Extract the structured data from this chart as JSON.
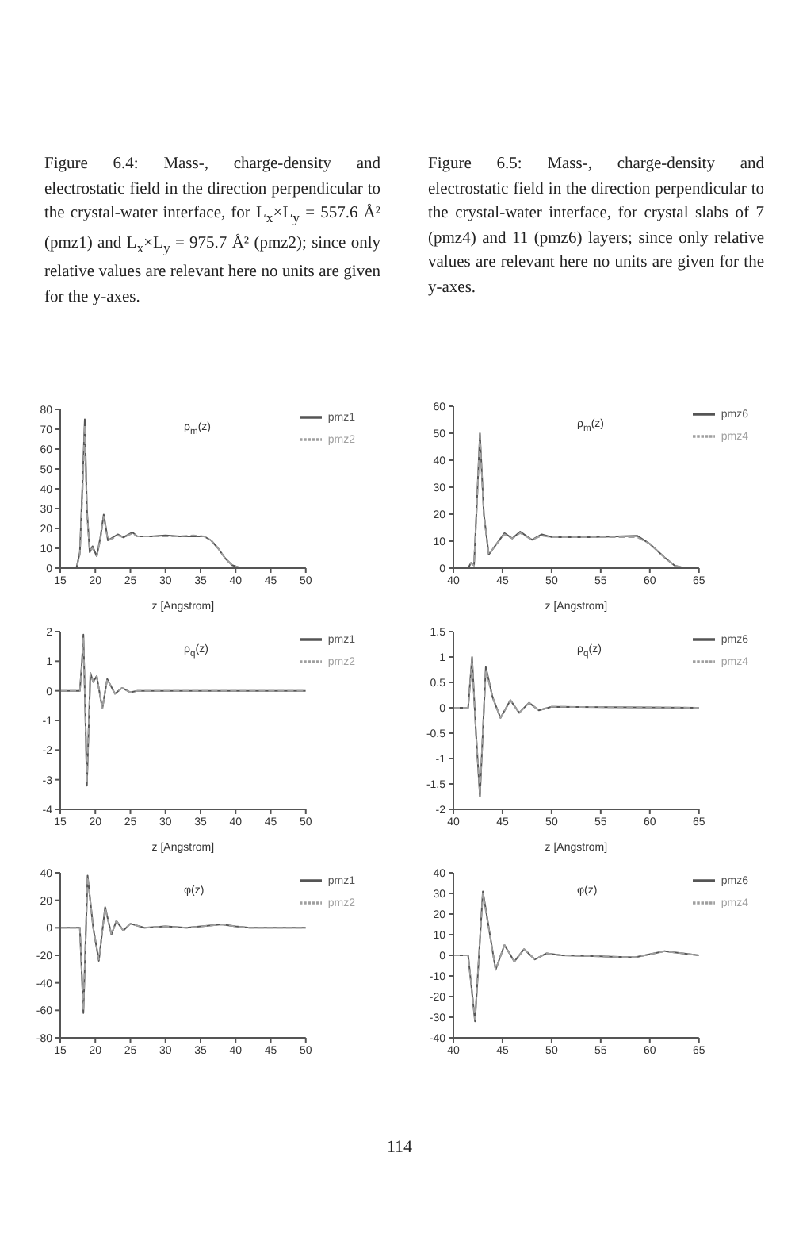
{
  "chart_data": [
    {
      "type": "line",
      "title": "Figure 6.4: Mass-, charge-density and electrostatic field in the direction perpendicular to the crystal-water interface, for L$_{x}$×L$_{y}$ = 557.6 Å² (pmz1) and L$_{x}$×L$_{y}$ = 975.7 Å² (pmz2); since only relative values are relevant here no units are given for the y-axes.",
      "xlabel": "z [Angstrom]",
      "annotations": [
        "ρ$_{m}$(z)"
      ],
      "legend": "top right",
      "xlim": [
        15,
        50
      ],
      "xticks": [
        15,
        20,
        25,
        30,
        35,
        40,
        45,
        50
      ],
      "ylim": [
        0,
        80
      ],
      "yticks": [
        0,
        10,
        20,
        30,
        40,
        50,
        60,
        70,
        80
      ],
      "x": [
        15,
        17.3,
        17.8,
        18.2,
        18.5,
        18.8,
        19.2,
        19.6,
        20.2,
        20.7,
        21.2,
        21.8,
        22.5,
        23.2,
        24,
        25.3,
        26,
        28,
        30,
        32,
        34,
        35.5,
        36.5,
        37.5,
        38.5,
        39.5,
        40.5,
        42,
        50
      ],
      "series": [
        {
          "name": "pmz1",
          "color": "#555555",
          "values": [
            0,
            0,
            8,
            45,
            75,
            30,
            8,
            11,
            6,
            15,
            27,
            14,
            15.5,
            17,
            15.5,
            18,
            16,
            16,
            16.5,
            16,
            16,
            16,
            14,
            10,
            5,
            1.5,
            0.3,
            0,
            0
          ]
        },
        {
          "name": "pmz2",
          "color": "#a0a0a0",
          "line_style": "dashed",
          "values": [
            0,
            0,
            7,
            40,
            72,
            28,
            9,
            10,
            6,
            14,
            26,
            14,
            15,
            16.5,
            15.5,
            17.5,
            16,
            16,
            16,
            16,
            16.5,
            16,
            14,
            10,
            5,
            1.5,
            0.3,
            0,
            0
          ]
        }
      ]
    },
    {
      "type": "line",
      "xlabel": "z [Angstrom]",
      "annotations": [
        "ρ$_{q}$(z)"
      ],
      "legend": "top right",
      "xlim": [
        15,
        50
      ],
      "xticks": [
        15,
        20,
        25,
        30,
        35,
        40,
        45,
        50
      ],
      "ylim": [
        -4,
        2
      ],
      "yticks": [
        -4,
        -3,
        -2,
        -1,
        0,
        1,
        2
      ],
      "x": [
        15,
        17.8,
        18.1,
        18.3,
        18.55,
        18.8,
        19.3,
        19.7,
        20.2,
        21,
        21.7,
        22.8,
        23.8,
        25,
        26,
        50
      ],
      "series": [
        {
          "name": "pmz1",
          "color": "#555555",
          "values": [
            0,
            0,
            1,
            1.9,
            -0.5,
            -3.2,
            0.6,
            0.3,
            0.5,
            -0.6,
            0.4,
            -0.1,
            0.1,
            -0.05,
            0,
            0
          ]
        },
        {
          "name": "pmz2",
          "color": "#a0a0a0",
          "line_style": "dashed",
          "values": [
            0,
            0,
            0.9,
            1.8,
            -0.5,
            -3.1,
            0.6,
            0.3,
            0.5,
            -0.6,
            0.4,
            -0.1,
            0.1,
            -0.05,
            0,
            0
          ]
        }
      ]
    },
    {
      "type": "line",
      "annotations": [
        "φ(z)"
      ],
      "legend": "top right",
      "xlim": [
        15,
        50
      ],
      "xticks": [
        15,
        20,
        25,
        30,
        35,
        40,
        45,
        50
      ],
      "ylim": [
        -80,
        40
      ],
      "yticks": [
        -80,
        -60,
        -40,
        -20,
        0,
        20,
        40
      ],
      "x": [
        15,
        17.8,
        18.3,
        18.9,
        19.7,
        20.5,
        21.4,
        22.3,
        23,
        24,
        25,
        27,
        30,
        33,
        38,
        40,
        42,
        50
      ],
      "series": [
        {
          "name": "pmz1",
          "color": "#555555",
          "values": [
            0,
            0,
            -62,
            38,
            0,
            -24,
            15,
            -5,
            5,
            -2,
            3,
            0,
            1,
            0,
            2.5,
            1,
            0,
            0
          ]
        },
        {
          "name": "pmz2",
          "color": "#a0a0a0",
          "line_style": "dashed",
          "values": [
            0,
            0,
            -60,
            37,
            0,
            -23,
            14,
            -5,
            5,
            -2,
            3,
            0,
            1,
            0,
            2.5,
            1,
            0,
            0
          ]
        }
      ]
    },
    {
      "type": "line",
      "title": "Figure 6.5: Mass-, charge-density and electrostatic field in the direction perpendicular to the crystal-water interface, for crystal slabs of 7 (pmz4) and 11 (pmz6) layers; since only relative values are relevant here no units are given for the y-axes.",
      "xlabel": "z [Angstrom]",
      "annotations": [
        "ρ$_{m}$(z)"
      ],
      "legend": "top right",
      "xlim": [
        40,
        65
      ],
      "xticks": [
        40,
        45,
        50,
        55,
        60,
        65
      ],
      "ylim": [
        0,
        60
      ],
      "yticks": [
        0,
        10,
        20,
        30,
        40,
        50,
        60
      ],
      "x": [
        40,
        41.5,
        41.8,
        42.1,
        42.4,
        42.7,
        43.1,
        43.6,
        44.4,
        45.2,
        46,
        46.8,
        48,
        49,
        50,
        54,
        58.7,
        60,
        61.5,
        62.5,
        63.5,
        65
      ],
      "series": [
        {
          "name": "pmz6",
          "color": "#555555",
          "values": [
            0,
            0,
            2,
            1,
            25,
            50,
            20,
            5,
            9,
            13,
            11,
            13.5,
            10.5,
            12.5,
            11.5,
            11.5,
            12,
            9,
            4,
            1,
            0,
            0
          ]
        },
        {
          "name": "pmz4",
          "color": "#a0a0a0",
          "line_style": "dashed",
          "values": [
            0,
            0,
            2,
            1,
            24,
            49,
            20,
            5,
            9,
            12.5,
            11,
            13,
            10.5,
            12,
            11.5,
            11.5,
            11.5,
            9,
            4,
            1,
            0,
            0
          ]
        }
      ]
    },
    {
      "type": "line",
      "xlabel": "z [Angstrom]",
      "annotations": [
        "ρ$_{q}$(z)"
      ],
      "legend": "top right",
      "xlim": [
        40,
        65
      ],
      "xticks": [
        40,
        45,
        50,
        55,
        60,
        65
      ],
      "ylim": [
        -2,
        1.5
      ],
      "yticks": [
        -2,
        -1.5,
        -1,
        -0.5,
        0,
        0.5,
        1,
        1.5
      ],
      "x": [
        40,
        41.5,
        41.9,
        42.3,
        42.7,
        43.3,
        44,
        44.8,
        45.8,
        46.7,
        47.7,
        48.7,
        50,
        65
      ],
      "series": [
        {
          "name": "pmz6",
          "color": "#555555",
          "values": [
            0,
            0,
            1,
            -0.5,
            -1.75,
            0.8,
            0.2,
            -0.2,
            0.15,
            -0.1,
            0.1,
            -0.05,
            0.02,
            0
          ]
        },
        {
          "name": "pmz4",
          "color": "#a0a0a0",
          "line_style": "dashed",
          "values": [
            0,
            0,
            0.95,
            -0.5,
            -1.7,
            0.75,
            0.2,
            -0.2,
            0.15,
            -0.1,
            0.1,
            -0.05,
            0.02,
            0
          ]
        }
      ]
    },
    {
      "type": "line",
      "annotations": [
        "φ(z)",
        "114"
      ],
      "legend": "top right",
      "xlim": [
        40,
        65
      ],
      "xticks": [
        40,
        45,
        50,
        55,
        60,
        65
      ],
      "ylim": [
        -40,
        40
      ],
      "yticks": [
        -40,
        -30,
        -20,
        -10,
        0,
        10,
        20,
        30,
        40
      ],
      "x": [
        40,
        41.5,
        42.2,
        43,
        44.3,
        45.2,
        46.2,
        47.2,
        48.3,
        49.5,
        51,
        55,
        58.5,
        61.5,
        65
      ],
      "series": [
        {
          "name": "pmz6",
          "color": "#555555",
          "values": [
            0,
            0,
            -32,
            31,
            -7,
            5,
            -3,
            3,
            -2,
            1,
            0,
            -0.5,
            -1,
            2,
            0
          ]
        },
        {
          "name": "pmz4",
          "color": "#a0a0a0",
          "line_style": "dashed",
          "values": [
            0,
            0,
            -31,
            30,
            -7,
            5,
            -3,
            3,
            -2,
            1,
            0,
            -0.5,
            -1,
            2,
            0
          ]
        }
      ]
    }
  ]
}
